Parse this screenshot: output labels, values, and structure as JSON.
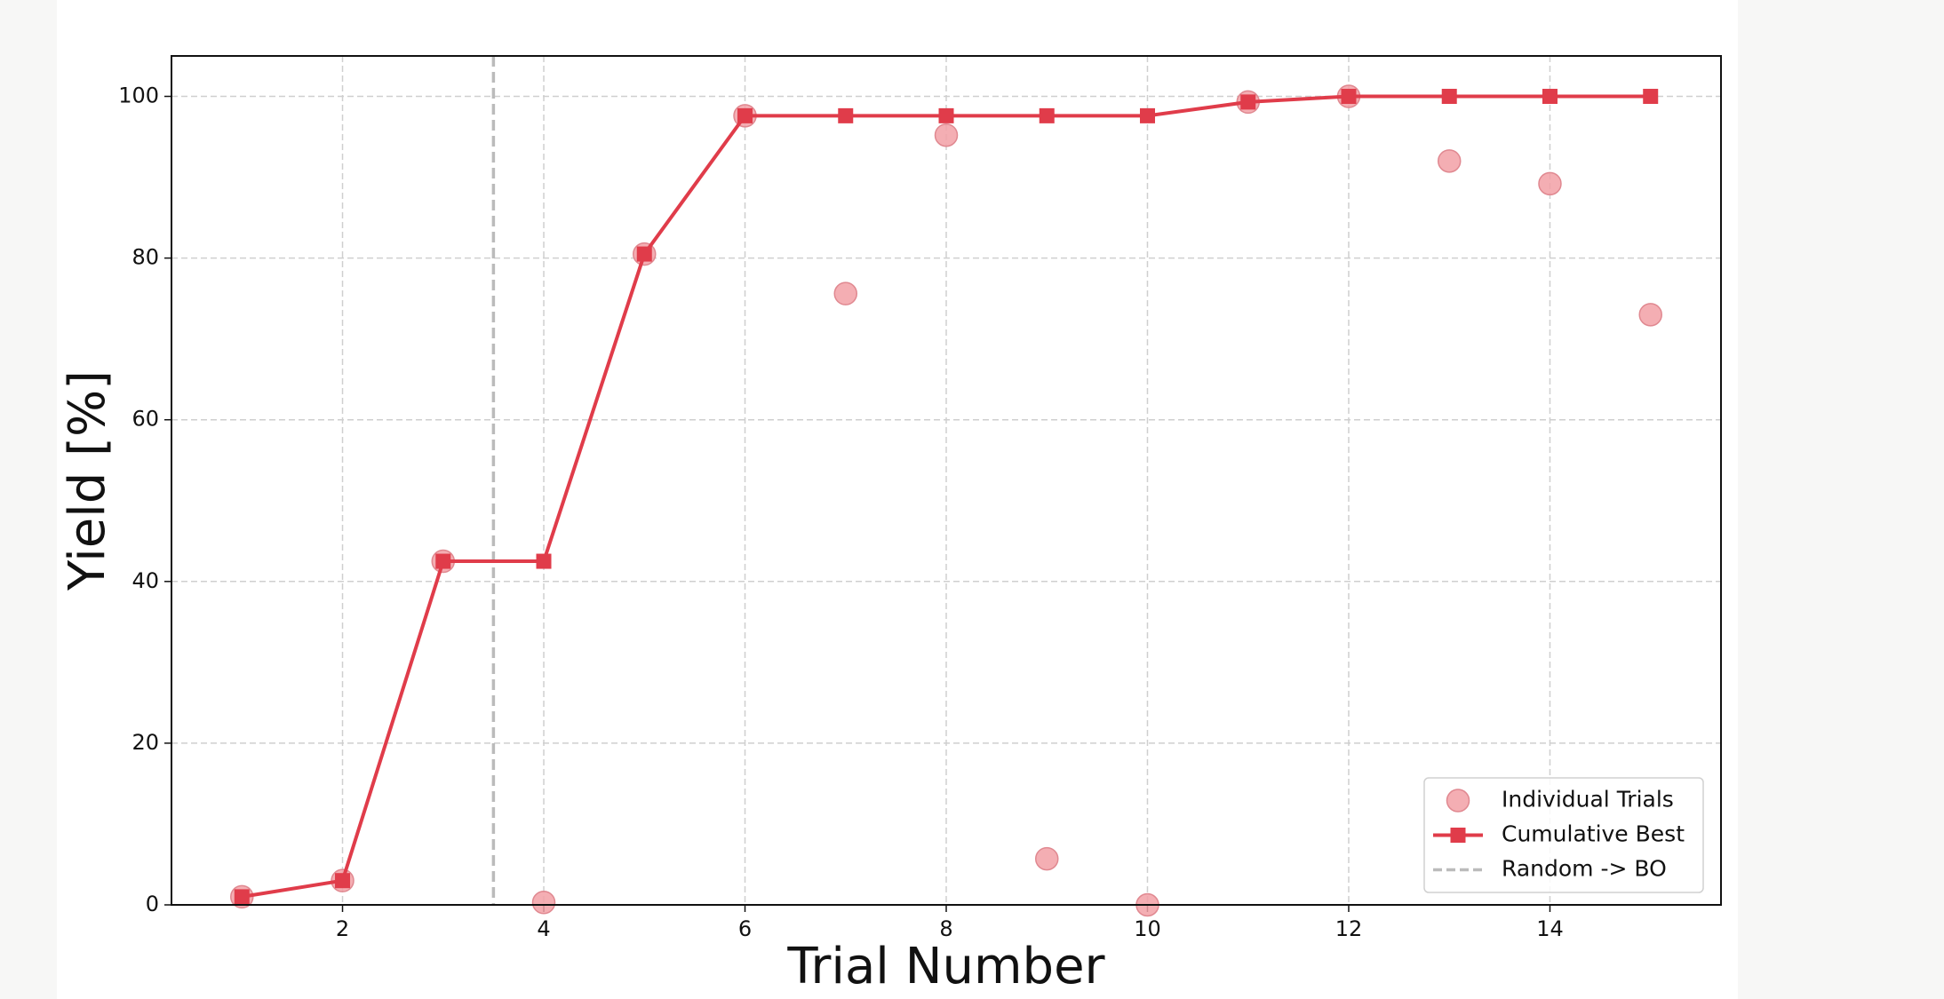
{
  "chart_data": {
    "type": "line",
    "xlabel": "Trial Number",
    "ylabel": "Yield [%]",
    "x": [
      1,
      2,
      3,
      4,
      5,
      6,
      7,
      8,
      9,
      10,
      11,
      12,
      13,
      14,
      15
    ],
    "series": [
      {
        "name": "Individual Trials",
        "color": "#f2a0a6",
        "marker": "circle",
        "line": false,
        "values": [
          1,
          3,
          42.5,
          0.3,
          80.5,
          97.6,
          75.6,
          95.2,
          5.7,
          0,
          99.3,
          100,
          92,
          89.2,
          73
        ]
      },
      {
        "name": "Cumulative Best",
        "color": "#e03c4a",
        "marker": "square",
        "line": true,
        "values": [
          1,
          3,
          42.5,
          42.5,
          80.5,
          97.6,
          97.6,
          97.6,
          97.6,
          97.6,
          99.3,
          100,
          100,
          100,
          100
        ]
      }
    ],
    "vlines": [
      {
        "x": 3.5,
        "label": "Random -> BO",
        "color": "#bbbbbb"
      }
    ],
    "xlim": [
      0.3,
      15.7
    ],
    "xticks": [
      2,
      4,
      6,
      8,
      10,
      12,
      14
    ],
    "ylim": [
      0,
      105
    ],
    "yticks": [
      0,
      20,
      40,
      60,
      80,
      100
    ],
    "grid": true,
    "legend": "lower right"
  }
}
